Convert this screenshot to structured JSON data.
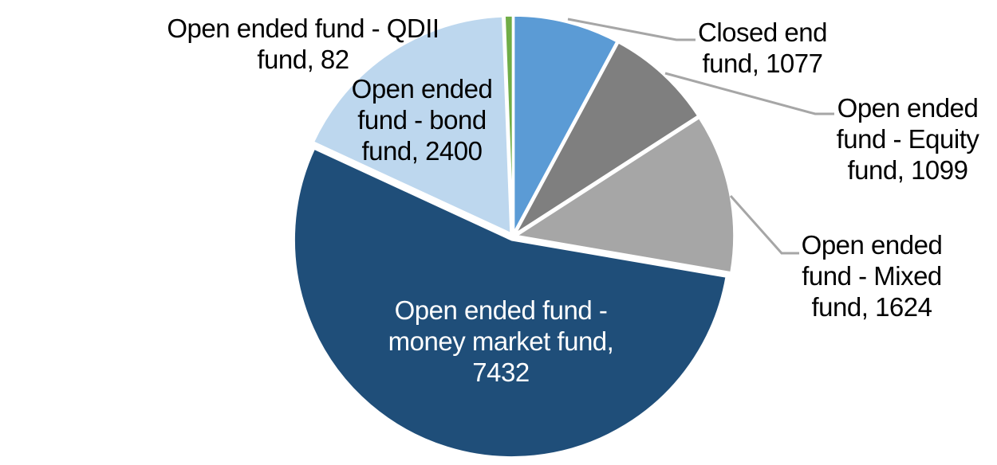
{
  "chart_data": {
    "type": "pie",
    "title": "",
    "legend": "none",
    "start_angle_deg": 0,
    "direction": "clockwise",
    "total": 13714,
    "label_style": "category-name-and-value, outside labels with leader lines, inside label for largest slice",
    "series": [
      {
        "key": "closed-end-fund",
        "name": "Closed end fund",
        "value": 1077,
        "color": "#5B9BD5"
      },
      {
        "key": "equity-fund",
        "name": "Open ended fund - Equity fund",
        "value": 1099,
        "color": "#7F7F7F"
      },
      {
        "key": "mixed-fund",
        "name": "Open ended fund - Mixed fund",
        "value": 1624,
        "color": "#A6A6A6"
      },
      {
        "key": "money-market-fund",
        "name": "Open ended fund - money market fund",
        "value": 7432,
        "color": "#1F4E79"
      },
      {
        "key": "bond-fund",
        "name": "Open ended fund - bond fund",
        "value": 2400,
        "color": "#BDD7EE"
      },
      {
        "key": "qdii-fund",
        "name": "Open ended fund - QDII fund",
        "value": 82,
        "color": "#70AD47"
      }
    ]
  },
  "labels": {
    "qdii": {
      "lines": [
        "Open ended fund - QDII",
        "fund, 82"
      ],
      "color": "#000000"
    },
    "bond": {
      "lines": [
        "Open ended",
        "fund - bond",
        "fund, 2400"
      ],
      "color": "#000000"
    },
    "closed": {
      "lines": [
        "Closed end",
        "fund, 1077"
      ],
      "color": "#000000"
    },
    "equity": {
      "lines": [
        "Open ended",
        "fund - Equity",
        "fund, 1099"
      ],
      "color": "#000000"
    },
    "mixed": {
      "lines": [
        "Open ended",
        "fund - Mixed",
        "fund, 1624"
      ],
      "color": "#000000"
    },
    "money": {
      "lines": [
        "Open ended fund -",
        "money market fund,",
        "7432"
      ],
      "color": "#FFFFFF"
    }
  },
  "colors": {
    "background": "#FFFFFF",
    "leader_line": "#A6A6A6",
    "slice_border": "#FFFFFF"
  }
}
